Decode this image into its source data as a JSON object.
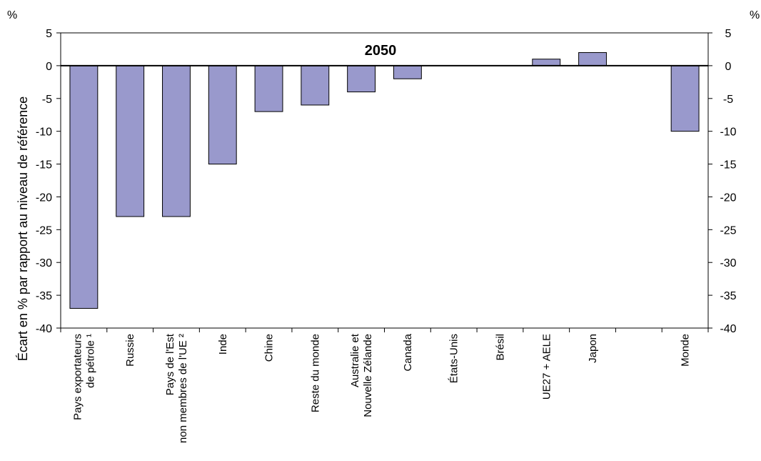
{
  "chart_data": {
    "type": "bar",
    "title": "2050",
    "ylabel": "Écart en % par rapport au niveau de référence",
    "unit_left": "%",
    "unit_right": "%",
    "ylim": [
      -40,
      5
    ],
    "yticks": [
      5,
      0,
      -5,
      -10,
      -15,
      -20,
      -25,
      -30,
      -35,
      -40
    ],
    "categories": [
      [
        "Pays exportateurs",
        "de pétrole ¹"
      ],
      [
        "Russie"
      ],
      [
        "Pays de l'Est",
        "non membres de l'UE ²"
      ],
      [
        "Inde"
      ],
      [
        "Chine"
      ],
      [
        "Reste du monde"
      ],
      [
        "Australie et",
        "Nouvelle Zélande"
      ],
      [
        "Canada"
      ],
      [
        "États-Unis"
      ],
      [
        "Brésil"
      ],
      [
        "UE27 + AELE"
      ],
      [
        "Japon"
      ],
      [
        ""
      ],
      [
        "Monde"
      ]
    ],
    "values": [
      -37,
      -23,
      -23,
      -15,
      -7,
      -6,
      -4,
      -2,
      0,
      0,
      1,
      2,
      null,
      -10
    ],
    "bar_color": "#9999cc",
    "grid": false
  }
}
